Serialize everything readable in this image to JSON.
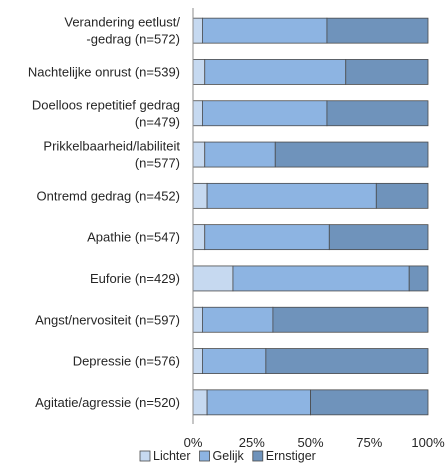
{
  "chart_data": {
    "type": "bar",
    "orientation": "horizontal",
    "stacked": true,
    "normalized_percent": true,
    "categories": [
      [
        "Verandering eetlust/",
        "-gedrag (n=572)"
      ],
      [
        "Nachtelijke onrust (n=539)"
      ],
      [
        "Doelloos repetitief gedrag",
        "(n=479)"
      ],
      [
        "Prikkelbaarheid/labiliteit",
        "(n=577)"
      ],
      [
        "Ontremd gedrag (n=452)"
      ],
      [
        "Apathie (n=547)"
      ],
      [
        "Euforie (n=429)"
      ],
      [
        "Angst/nervositeit (n=597)"
      ],
      [
        "Depressie (n=576)"
      ],
      [
        "Agitatie/agressie (n=520)"
      ]
    ],
    "series": [
      {
        "name": "Lichter",
        "color": "#c6d9f0",
        "values": [
          4,
          5,
          4,
          5,
          6,
          5,
          17,
          4,
          4,
          6
        ]
      },
      {
        "name": "Gelijk",
        "color": "#8db4e2",
        "values": [
          53,
          60,
          53,
          30,
          72,
          53,
          75,
          30,
          27,
          44
        ]
      },
      {
        "name": "Ernstiger",
        "color": "#6f93bb",
        "values": [
          43,
          35,
          43,
          65,
          22,
          42,
          8,
          66,
          69,
          50
        ]
      }
    ],
    "xticks": [
      "0%",
      "25%",
      "50%",
      "75%",
      "100%"
    ],
    "xlim": [
      0,
      100
    ],
    "legend_position": "bottom",
    "grid": false
  }
}
